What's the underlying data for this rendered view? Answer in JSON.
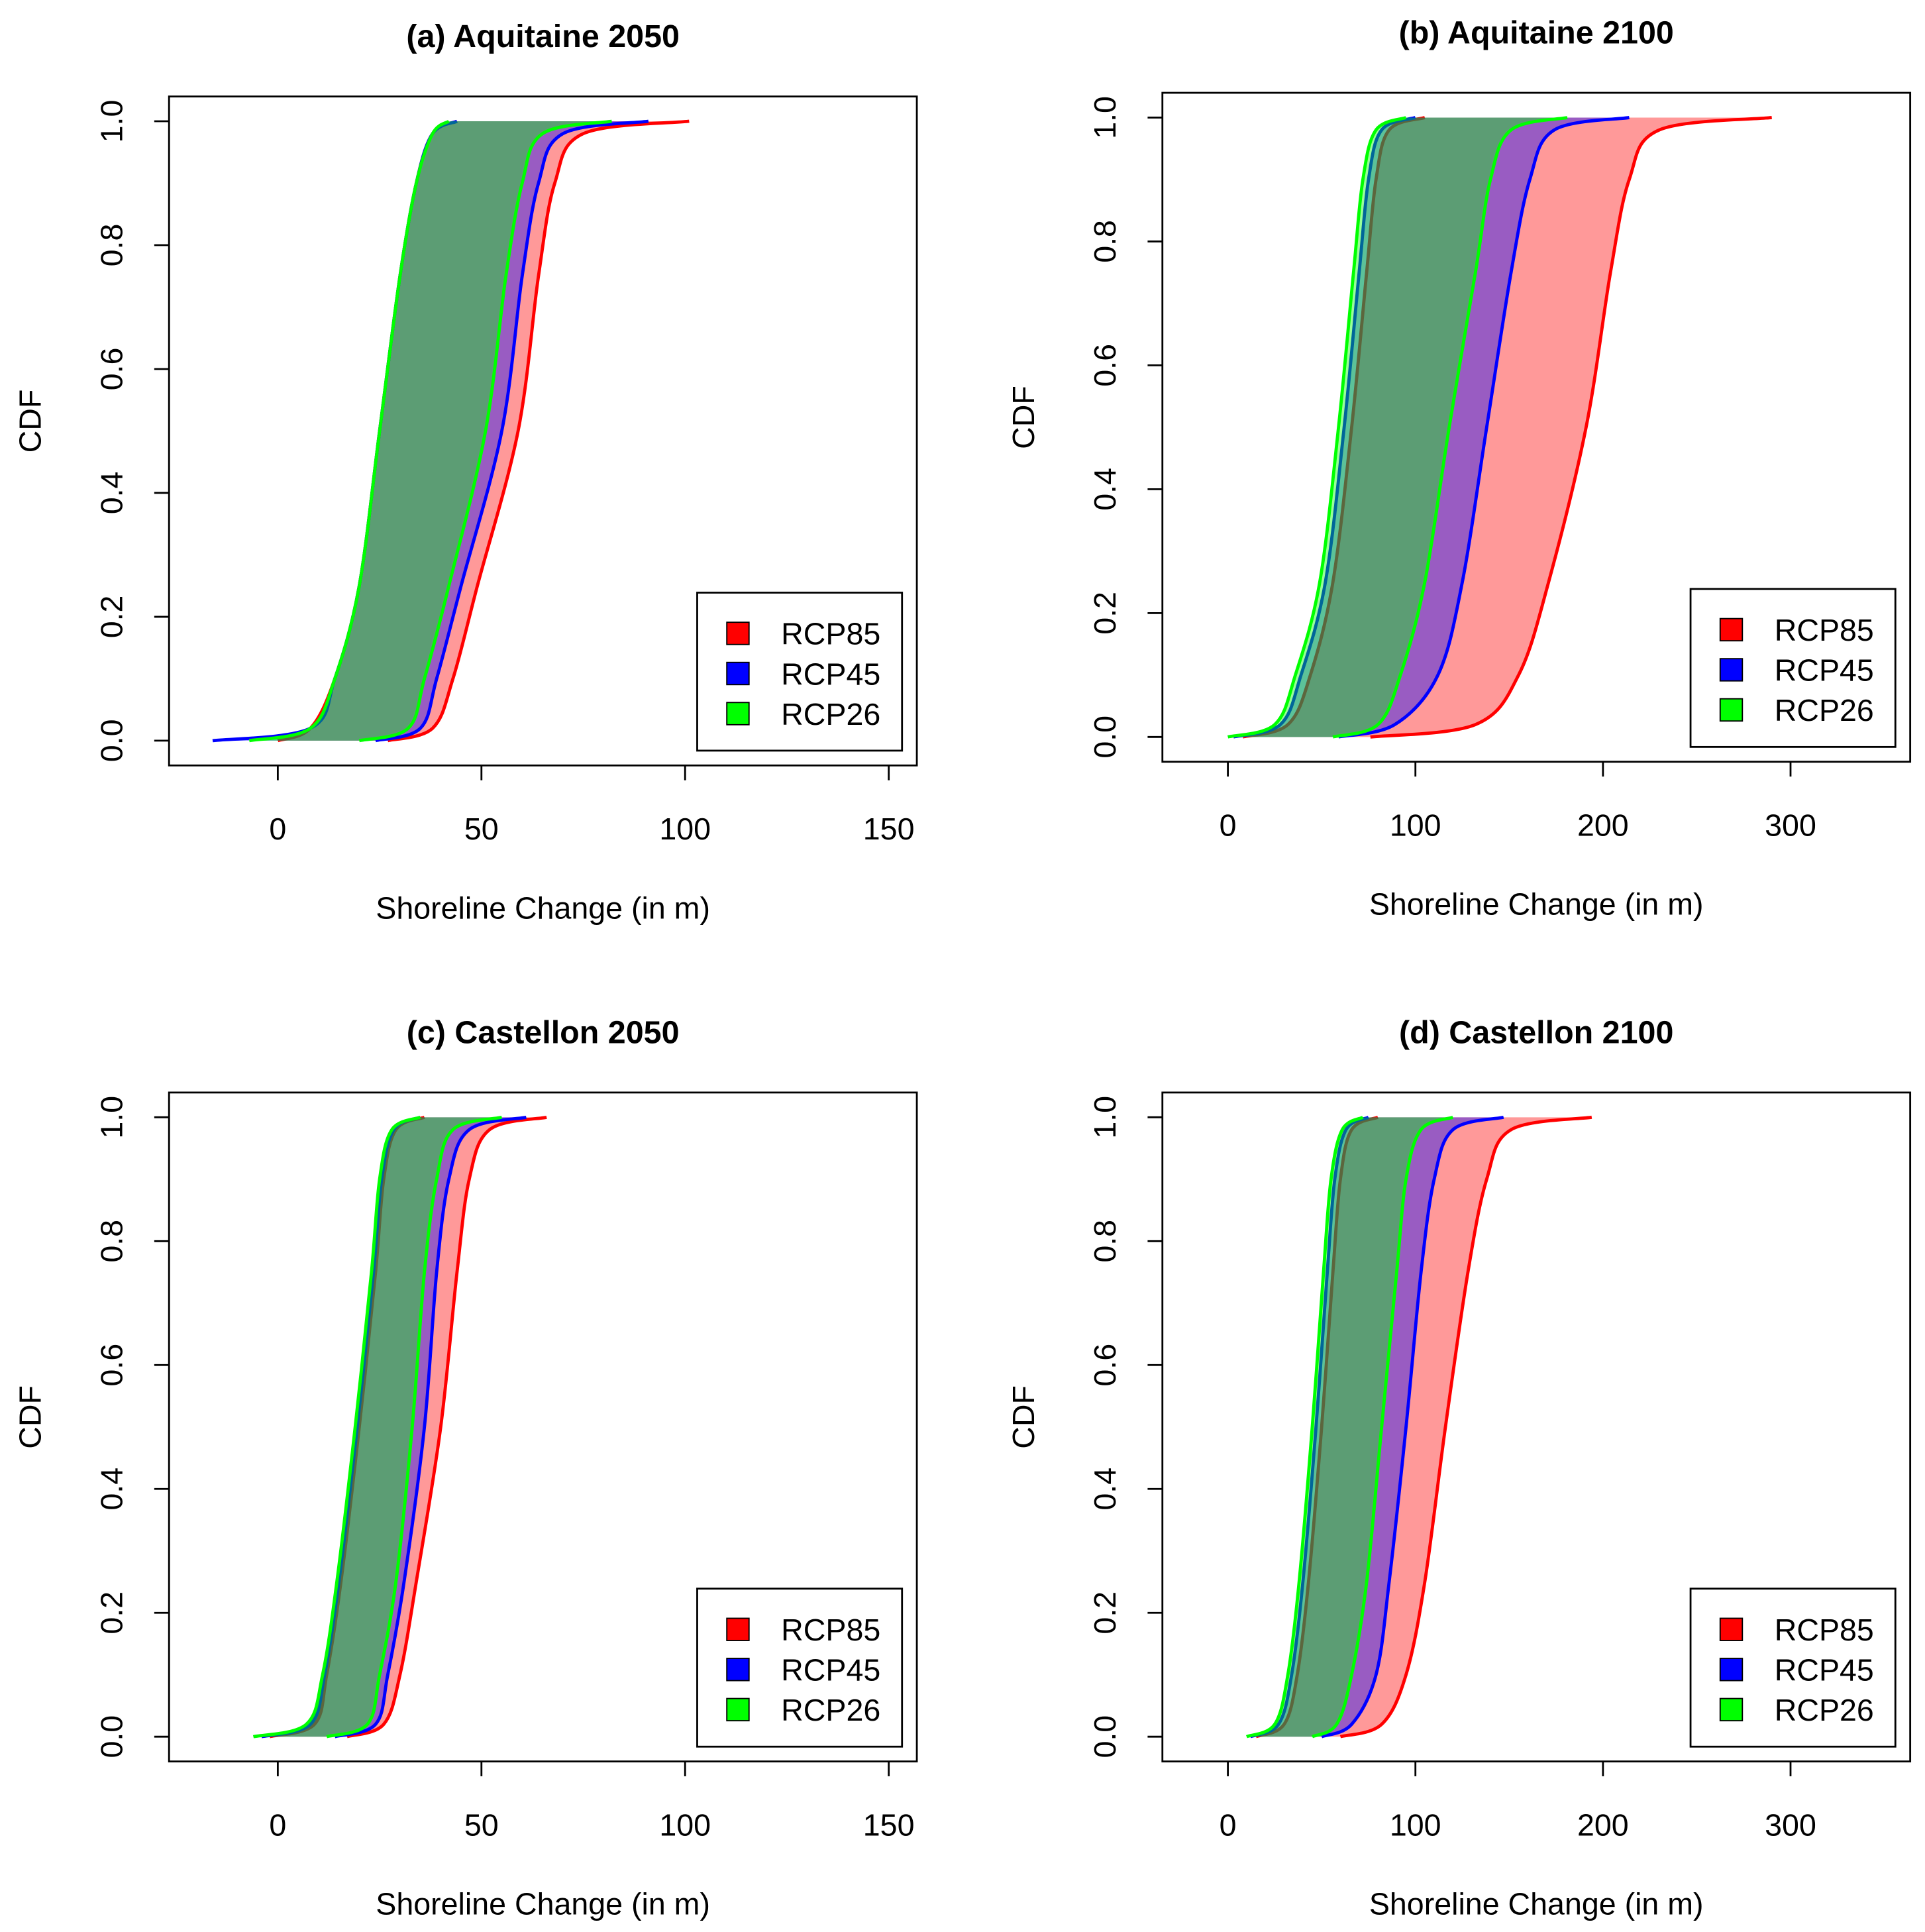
{
  "chart_data": [
    {
      "type": "area",
      "title": "(a) Aquitaine 2050",
      "xlabel": "Shoreline Change (in m)",
      "ylabel": "CDF",
      "xlim": [
        -26.7,
        156.9
      ],
      "ylim": [
        -0.04,
        1.04
      ],
      "xticks": [
        0,
        50,
        100,
        150
      ],
      "yticks": [
        "0.0",
        "0.2",
        "0.4",
        "0.6",
        "0.8",
        "1.0"
      ],
      "legend_position": "bottom-right",
      "probabilities": [
        0,
        0.02,
        0.1,
        0.25,
        0.5,
        0.75,
        0.9,
        0.98,
        1
      ],
      "series": [
        {
          "name": "RCP85",
          "color": "#FF0000",
          "lower": [
            0,
            8,
            14,
            20,
            25,
            30,
            34,
            38,
            44
          ],
          "upper": [
            27,
            38,
            43,
            49,
            59,
            64,
            68,
            75,
            101
          ]
        },
        {
          "name": "RCP45",
          "color": "#0000FF",
          "lower": [
            -16,
            8,
            14,
            20,
            25,
            30,
            34,
            38,
            44
          ],
          "upper": [
            24,
            35,
            39,
            45,
            55,
            60,
            64,
            70,
            91
          ]
        },
        {
          "name": "RCP26",
          "color": "#00FF00",
          "lower": [
            -7,
            8,
            14,
            20,
            25,
            30,
            34,
            38,
            42
          ],
          "upper": [
            20,
            32,
            36,
            42,
            51,
            56,
            60,
            65,
            82
          ]
        }
      ]
    },
    {
      "type": "area",
      "title": "(b) Aquitaine 2100",
      "xlabel": "Shoreline Change (in m)",
      "ylabel": "CDF",
      "xlim": [
        -34.9,
        363.8
      ],
      "ylim": [
        -0.04,
        1.04
      ],
      "xticks": [
        0,
        100,
        200,
        300
      ],
      "yticks": [
        "0.0",
        "0.2",
        "0.4",
        "0.6",
        "0.8",
        "1.0"
      ],
      "legend_position": "bottom-right",
      "probabilities": [
        0,
        0.02,
        0.1,
        0.25,
        0.5,
        0.75,
        0.9,
        0.98,
        1
      ],
      "series": [
        {
          "name": "RCP85",
          "color": "#FF0000",
          "lower": [
            8,
            32,
            44,
            56,
            66,
            74,
            79,
            86,
            105
          ],
          "upper": [
            76,
            132,
            155,
            171,
            191,
            204,
            214,
            230,
            290
          ]
        },
        {
          "name": "RCP45",
          "color": "#0000FF",
          "lower": [
            3,
            28,
            39,
            52,
            62,
            70,
            75,
            82,
            100
          ],
          "upper": [
            59,
            89,
            112,
            125,
            138,
            151,
            161,
            174,
            214
          ]
        },
        {
          "name": "RCP26",
          "color": "#00FF00",
          "lower": [
            0,
            25,
            36,
            49,
            59,
            67,
            72,
            79,
            95
          ],
          "upper": [
            56,
            80,
            92,
            105,
            118,
            132,
            140,
            151,
            181
          ]
        }
      ]
    },
    {
      "type": "area",
      "title": "(c) Castellon 2050",
      "xlabel": "Shoreline Change (in m)",
      "ylabel": "CDF",
      "xlim": [
        -26.7,
        156.9
      ],
      "ylim": [
        -0.04,
        1.04
      ],
      "xticks": [
        0,
        50,
        100,
        150
      ],
      "yticks": [
        "0.0",
        "0.2",
        "0.4",
        "0.6",
        "0.8",
        "1.0"
      ],
      "legend_position": "bottom-right",
      "probabilities": [
        0,
        0.02,
        0.1,
        0.25,
        0.5,
        0.75,
        0.9,
        0.98,
        1
      ],
      "series": [
        {
          "name": "RCP85",
          "color": "#FF0000",
          "lower": [
            -2,
            9,
            12,
            15.5,
            20,
            24,
            26,
            29,
            36
          ],
          "upper": [
            17,
            26,
            30,
            34,
            40,
            44,
            47,
            52,
            66
          ]
        },
        {
          "name": "RCP45",
          "color": "#0000FF",
          "lower": [
            -4,
            8,
            11.5,
            15,
            19.5,
            23.5,
            25.5,
            28.5,
            35
          ],
          "upper": [
            14,
            24,
            27,
            31,
            36,
            39,
            42,
            47,
            61
          ]
        },
        {
          "name": "RCP26",
          "color": "#00FF00",
          "lower": [
            -6,
            7,
            11,
            14.5,
            19,
            23,
            25,
            28,
            35
          ],
          "upper": [
            12,
            22,
            25,
            29,
            33,
            36,
            39,
            43,
            55
          ]
        }
      ]
    },
    {
      "type": "area",
      "title": "(d) Castellon 2100",
      "xlabel": "Shoreline Change (in m)",
      "ylabel": "CDF",
      "xlim": [
        -34.9,
        363.8
      ],
      "ylim": [
        -0.04,
        1.04
      ],
      "xticks": [
        0,
        100,
        200,
        300
      ],
      "yticks": [
        "0.0",
        "0.2",
        "0.4",
        "0.6",
        "0.8",
        "1.0"
      ],
      "legend_position": "bottom-right",
      "probabilities": [
        0,
        0.02,
        0.1,
        0.25,
        0.5,
        0.75,
        0.9,
        0.98,
        1
      ],
      "series": [
        {
          "name": "RCP85",
          "color": "#FF0000",
          "lower": [
            15,
            30,
            37,
            43,
            50,
            56,
            60,
            66,
            80
          ],
          "upper": [
            60,
            82,
            95,
            105,
            116,
            128,
            138,
            151,
            194
          ]
        },
        {
          "name": "RCP45",
          "color": "#0000FF",
          "lower": [
            12,
            27,
            34,
            40,
            47,
            53,
            57,
            63,
            75
          ],
          "upper": [
            50,
            66,
            79,
            86,
            95,
            103,
            110,
            120,
            147
          ]
        },
        {
          "name": "RCP26",
          "color": "#00FF00",
          "lower": [
            10,
            25,
            32,
            38,
            45,
            51,
            55,
            61,
            72
          ],
          "upper": [
            45,
            58,
            66,
            74,
            82,
            90,
            95,
            103,
            120
          ]
        }
      ]
    }
  ]
}
